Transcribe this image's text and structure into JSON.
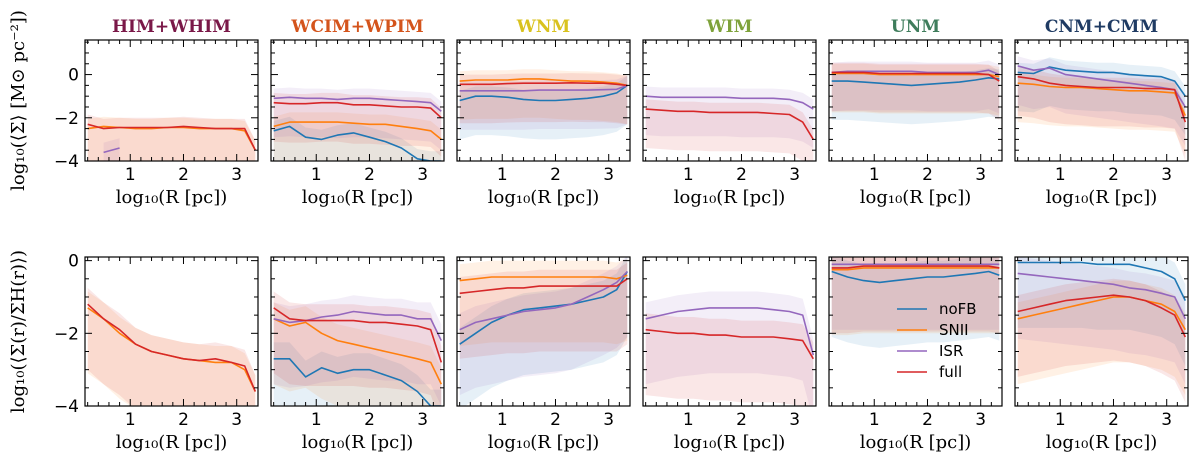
{
  "chart_data": {
    "type": "line",
    "panels_columns": [
      {
        "name": "HIM+WHIM",
        "color": "#7a1848"
      },
      {
        "name": "WCIM+WPIM",
        "color": "#d4541c"
      },
      {
        "name": "WNM",
        "color": "#d9c21e"
      },
      {
        "name": "WIM",
        "color": "#7ea23a"
      },
      {
        "name": "UNM",
        "color": "#3f7d5c"
      },
      {
        "name": "CNM+CMM",
        "color": "#1f3b63"
      }
    ],
    "x_label": "log₁₀(R [pc])",
    "x_ticks": [
      "1",
      "2",
      "3"
    ],
    "xlim": [
      0.15,
      3.4
    ],
    "rows": [
      {
        "y_label": "log₁₀(⟨Σ⟩ [M⊙ pc⁻²])",
        "ylim": [
          -4,
          1.6
        ],
        "y_ticks": [
          "0",
          "−2",
          "−4"
        ]
      },
      {
        "y_label": "log₁₀(⟨Σ(r)/ΣH(r)⟩)",
        "ylim": [
          -4,
          0.1
        ],
        "y_ticks": [
          "0",
          "−2",
          "−4"
        ]
      }
    ],
    "series_names": [
      "noFB",
      "SNII",
      "ISR",
      "full"
    ],
    "series_colors": [
      "#1f77b4",
      "#ff7f0e",
      "#9467bd",
      "#d62728"
    ],
    "x": [
      0.2,
      0.5,
      0.8,
      1.1,
      1.4,
      1.7,
      2.0,
      2.3,
      2.6,
      2.9,
      3.15,
      3.35
    ],
    "panels": [
      {
        "row": 0,
        "col": 0,
        "series": {
          "noFB": null,
          "SNII": [
            -2.5,
            -2.4,
            -2.45,
            -2.5,
            -2.5,
            -2.45,
            -2.45,
            -2.5,
            -2.5,
            -2.5,
            -2.6,
            -3.5
          ],
          "ISR": [
            null,
            -3.6,
            -3.4,
            null,
            null,
            null,
            null,
            null,
            null,
            null,
            null,
            null
          ],
          "full": [
            -2.3,
            -2.5,
            -2.45,
            -2.45,
            -2.45,
            -2.45,
            -2.4,
            -2.45,
            -2.5,
            -2.5,
            -2.5,
            -3.5
          ]
        }
      },
      {
        "row": 0,
        "col": 1,
        "series": {
          "noFB": [
            -2.6,
            -2.4,
            -2.9,
            -3.0,
            -2.8,
            -2.7,
            -2.9,
            -3.1,
            -3.4,
            -3.9,
            -4.0,
            -4.0
          ],
          "SNII": [
            -2.4,
            -2.2,
            -2.2,
            -2.2,
            -2.2,
            -2.25,
            -2.3,
            -2.3,
            -2.4,
            -2.5,
            -2.6,
            -3.0
          ],
          "ISR": [
            -1.1,
            -1.05,
            -1.1,
            -1.1,
            -1.15,
            -1.1,
            -1.1,
            -1.15,
            -1.2,
            -1.25,
            -1.3,
            -1.7
          ],
          "full": [
            -1.3,
            -1.35,
            -1.35,
            -1.3,
            -1.3,
            -1.4,
            -1.4,
            -1.45,
            -1.5,
            -1.5,
            -1.55,
            -2.0
          ]
        }
      },
      {
        "row": 0,
        "col": 2,
        "series": {
          "noFB": [
            -1.2,
            -1.0,
            -1.0,
            -1.05,
            -1.15,
            -1.2,
            -1.2,
            -1.15,
            -1.1,
            -1.0,
            -0.85,
            -0.5
          ],
          "SNII": [
            -0.3,
            -0.25,
            -0.25,
            -0.25,
            -0.2,
            -0.2,
            -0.25,
            -0.3,
            -0.3,
            -0.35,
            -0.4,
            -0.5
          ],
          "ISR": [
            -0.75,
            -0.75,
            -0.75,
            -0.75,
            -0.75,
            -0.72,
            -0.72,
            -0.72,
            -0.72,
            -0.7,
            -0.68,
            -0.5
          ],
          "full": [
            -0.45,
            -0.45,
            -0.45,
            -0.42,
            -0.4,
            -0.4,
            -0.4,
            -0.38,
            -0.4,
            -0.4,
            -0.45,
            -0.5
          ]
        }
      },
      {
        "row": 0,
        "col": 3,
        "series": {
          "noFB": null,
          "SNII": null,
          "ISR": [
            -1.0,
            -1.05,
            -1.05,
            -1.05,
            -1.05,
            -1.05,
            -1.1,
            -1.1,
            -1.1,
            -1.15,
            -1.3,
            -1.6
          ],
          "full": [
            -1.6,
            -1.65,
            -1.7,
            -1.7,
            -1.75,
            -1.75,
            -1.75,
            -1.75,
            -1.8,
            -1.85,
            -2.2,
            -3.0
          ]
        }
      },
      {
        "row": 0,
        "col": 4,
        "series": {
          "noFB": [
            -0.3,
            -0.3,
            -0.35,
            -0.4,
            -0.45,
            -0.5,
            -0.45,
            -0.4,
            -0.35,
            -0.25,
            -0.15,
            -0.2
          ],
          "SNII": [
            0.05,
            0.05,
            0.05,
            0.0,
            0.0,
            0.0,
            0.0,
            0.0,
            0.0,
            0.0,
            0.0,
            -0.1
          ],
          "ISR": [
            0.1,
            0.15,
            0.15,
            0.15,
            0.15,
            0.15,
            0.1,
            0.1,
            0.1,
            0.1,
            0.2,
            0.0
          ],
          "full": [
            0.1,
            0.1,
            0.1,
            0.05,
            0.05,
            0.05,
            0.05,
            0.05,
            0.05,
            0.05,
            0.0,
            -0.3
          ]
        }
      },
      {
        "row": 0,
        "col": 5,
        "series": {
          "noFB": [
            0.1,
            0.05,
            0.35,
            0.2,
            0.15,
            0.1,
            0.1,
            0.0,
            -0.05,
            -0.1,
            -0.3,
            -1.0
          ],
          "SNII": [
            -0.4,
            -0.45,
            -0.55,
            -0.6,
            -0.6,
            -0.65,
            -0.7,
            -0.75,
            -0.75,
            -0.8,
            -0.85,
            -1.9
          ],
          "ISR": [
            0.4,
            0.2,
            0.3,
            0.0,
            -0.1,
            -0.2,
            -0.3,
            -0.4,
            -0.5,
            -0.6,
            -0.7,
            -1.5
          ],
          "full": [
            -0.1,
            -0.2,
            -0.4,
            -0.5,
            -0.55,
            -0.6,
            -0.6,
            -0.6,
            -0.65,
            -0.65,
            -0.7,
            -2.2
          ]
        }
      },
      {
        "row": 1,
        "col": 0,
        "series": {
          "noFB": null,
          "SNII": [
            -1.3,
            -1.6,
            -2.0,
            -2.3,
            -2.5,
            -2.6,
            -2.7,
            -2.75,
            -2.8,
            -2.8,
            -3.0,
            -3.6
          ],
          "ISR": null,
          "full": [
            -1.2,
            -1.6,
            -1.9,
            -2.3,
            -2.5,
            -2.6,
            -2.7,
            -2.75,
            -2.7,
            -2.8,
            -2.9,
            -3.6
          ]
        }
      },
      {
        "row": 1,
        "col": 1,
        "series": {
          "noFB": [
            -2.7,
            -2.7,
            -3.2,
            -2.95,
            -3.1,
            -3.0,
            -3.0,
            -3.15,
            -3.3,
            -3.6,
            -4.0,
            -4.0
          ],
          "SNII": [
            -1.6,
            -1.8,
            -1.7,
            -2.0,
            -2.2,
            -2.3,
            -2.4,
            -2.5,
            -2.6,
            -2.7,
            -2.8,
            -3.4
          ],
          "ISR": [
            -1.6,
            -1.7,
            -1.65,
            -1.55,
            -1.5,
            -1.4,
            -1.45,
            -1.5,
            -1.5,
            -1.6,
            -1.6,
            -2.2
          ],
          "full": [
            -1.3,
            -1.6,
            -1.65,
            -1.65,
            -1.65,
            -1.65,
            -1.7,
            -1.7,
            -1.75,
            -1.8,
            -1.9,
            -2.8
          ]
        }
      },
      {
        "row": 1,
        "col": 2,
        "series": {
          "noFB": [
            -2.3,
            -2.0,
            -1.7,
            -1.5,
            -1.35,
            -1.3,
            -1.25,
            -1.2,
            -1.1,
            -1.0,
            -0.8,
            -0.3
          ],
          "SNII": [
            -0.55,
            -0.5,
            -0.45,
            -0.45,
            -0.45,
            -0.45,
            -0.45,
            -0.45,
            -0.45,
            -0.45,
            -0.5,
            -0.4
          ],
          "ISR": [
            -1.9,
            -1.7,
            -1.6,
            -1.5,
            -1.4,
            -1.35,
            -1.3,
            -1.2,
            -1.0,
            -0.8,
            -0.6,
            -0.3
          ],
          "full": [
            -0.9,
            -0.85,
            -0.8,
            -0.75,
            -0.75,
            -0.7,
            -0.7,
            -0.7,
            -0.7,
            -0.7,
            -0.7,
            -0.5
          ]
        }
      },
      {
        "row": 1,
        "col": 3,
        "series": {
          "noFB": null,
          "SNII": null,
          "ISR": [
            -1.6,
            -1.5,
            -1.4,
            -1.35,
            -1.3,
            -1.3,
            -1.3,
            -1.3,
            -1.35,
            -1.4,
            -1.5,
            -2.6
          ],
          "full": [
            -1.9,
            -1.95,
            -2.0,
            -2.0,
            -2.05,
            -2.05,
            -2.1,
            -2.1,
            -2.1,
            -2.15,
            -2.2,
            -2.7
          ]
        }
      },
      {
        "row": 1,
        "col": 4,
        "series": {
          "noFB": [
            -0.3,
            -0.45,
            -0.55,
            -0.6,
            -0.55,
            -0.5,
            -0.45,
            -0.45,
            -0.4,
            -0.35,
            -0.3,
            -0.4
          ],
          "SNII": [
            -0.25,
            -0.25,
            -0.2,
            -0.2,
            -0.2,
            -0.2,
            -0.2,
            -0.2,
            -0.2,
            -0.2,
            -0.2,
            -0.2
          ],
          "ISR": [
            -0.1,
            -0.1,
            -0.1,
            -0.1,
            -0.1,
            -0.1,
            -0.1,
            -0.1,
            -0.1,
            -0.1,
            -0.1,
            -0.1
          ],
          "full": [
            -0.2,
            -0.2,
            -0.15,
            -0.15,
            -0.15,
            -0.15,
            -0.15,
            -0.15,
            -0.15,
            -0.15,
            -0.15,
            -0.2
          ]
        }
      },
      {
        "row": 1,
        "col": 5,
        "series": {
          "noFB": [
            -0.05,
            -0.05,
            -0.05,
            -0.05,
            -0.05,
            -0.1,
            -0.1,
            -0.1,
            -0.2,
            -0.3,
            -0.5,
            -1.1
          ],
          "SNII": [
            -1.6,
            -1.5,
            -1.4,
            -1.3,
            -1.2,
            -1.1,
            -1.0,
            -1.0,
            -1.1,
            -1.2,
            -1.4,
            -1.9
          ],
          "ISR": [
            -0.35,
            -0.4,
            -0.45,
            -0.5,
            -0.55,
            -0.6,
            -0.65,
            -0.75,
            -0.8,
            -0.9,
            -1.0,
            -1.6
          ],
          "full": [
            -1.4,
            -1.3,
            -1.2,
            -1.1,
            -1.05,
            -1.0,
            -0.95,
            -1.0,
            -1.1,
            -1.3,
            -1.5,
            -2.1
          ]
        }
      }
    ],
    "legend": {
      "panel_row": 1,
      "panel_col": 4,
      "placement": "lower-right",
      "entries": [
        "noFB",
        "SNII",
        "ISR",
        "full"
      ]
    }
  }
}
